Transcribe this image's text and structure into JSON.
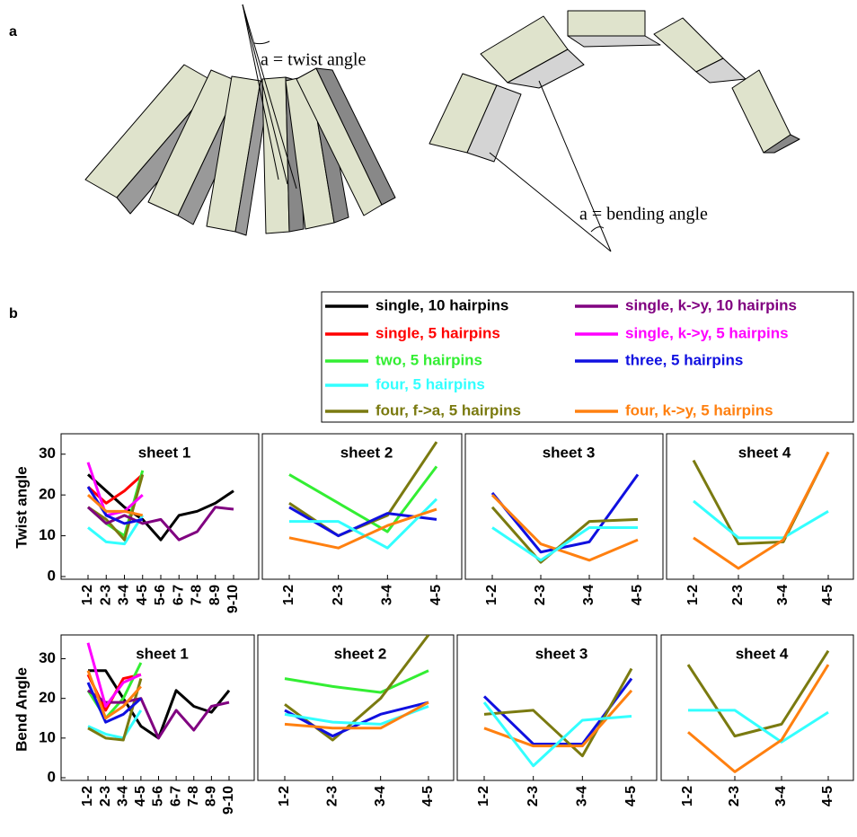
{
  "panel_a": {
    "label": "a",
    "twist_label": "a = twist angle",
    "bend_label": "a = bending angle"
  },
  "panel_b": {
    "label": "b"
  },
  "chart_data": [
    {
      "type": "line",
      "title": "sheet 1",
      "ylabel": "Twist angle",
      "categories": [
        "1-2",
        "2-3",
        "3-4",
        "4-5",
        "5-6",
        "6-7",
        "7-8",
        "8-9",
        "9-10"
      ],
      "ylim": [
        0,
        35
      ],
      "yticks": [
        0,
        10,
        20,
        30
      ],
      "series": [
        {
          "name": "single, 10 hairpins",
          "color": "#000000",
          "values": [
            25,
            21,
            17,
            14,
            9,
            15,
            16,
            18,
            21
          ]
        },
        {
          "name": "single, 5 hairpins",
          "color": "#ff0000",
          "values": [
            22,
            18,
            21,
            25,
            null,
            null,
            null,
            null,
            null
          ]
        },
        {
          "name": "two, 5 hairpins",
          "color": "#33ee33",
          "values": [
            17,
            13,
            10,
            26,
            null,
            null,
            null,
            null,
            null
          ]
        },
        {
          "name": "four, 5 hairpins",
          "color": "#33ffff",
          "values": [
            12,
            8.5,
            8,
            15,
            null,
            null,
            null,
            null,
            null
          ]
        },
        {
          "name": "four, f->a, 5 hairpins",
          "color": "#7a7a10",
          "values": [
            17,
            14,
            9,
            25,
            null,
            null,
            null,
            null,
            null
          ]
        },
        {
          "name": "single, k->y, 10 hairpins",
          "color": "#800080",
          "values": [
            17,
            13,
            15,
            13,
            14,
            9,
            11,
            17,
            16.5
          ]
        },
        {
          "name": "single, k->y, 5 hairpins",
          "color": "#ff00ff",
          "values": [
            28,
            15,
            16,
            20,
            null,
            null,
            null,
            null,
            null
          ]
        },
        {
          "name": "three, 5 hairpins",
          "color": "#1010e0",
          "values": [
            22,
            15,
            13,
            14,
            null,
            null,
            null,
            null,
            null
          ]
        },
        {
          "name": "four, k->y, 5 hairpins",
          "color": "#ff8010",
          "values": [
            20,
            16,
            16,
            15,
            null,
            null,
            null,
            null,
            null
          ]
        }
      ]
    },
    {
      "type": "line",
      "title": "sheet 2",
      "categories": [
        "1-2",
        "2-3",
        "3-4",
        "4-5"
      ],
      "ylim": [
        0,
        35
      ],
      "series": [
        {
          "name": "two, 5 hairpins",
          "color": "#33ee33",
          "values": [
            25,
            18,
            11,
            27
          ]
        },
        {
          "name": "four, f->a, 5 hairpins",
          "color": "#7a7a10",
          "values": [
            18,
            10,
            15,
            33
          ]
        },
        {
          "name": "three, 5 hairpins",
          "color": "#1010e0",
          "values": [
            17,
            10,
            15.5,
            14
          ]
        },
        {
          "name": "four, 5 hairpins",
          "color": "#33ffff",
          "values": [
            13.5,
            13.5,
            7,
            19
          ]
        },
        {
          "name": "four, k->y, 5 hairpins",
          "color": "#ff8010",
          "values": [
            9.5,
            7,
            12.5,
            16.5
          ]
        }
      ]
    },
    {
      "type": "line",
      "title": "sheet 3",
      "categories": [
        "1-2",
        "2-3",
        "3-4",
        "4-5"
      ],
      "ylim": [
        0,
        35
      ],
      "series": [
        {
          "name": "three, 5 hairpins",
          "color": "#1010e0",
          "values": [
            20.5,
            6,
            8.5,
            25
          ]
        },
        {
          "name": "four, k->y, 5 hairpins",
          "color": "#ff8010",
          "values": [
            20,
            8,
            4,
            9
          ]
        },
        {
          "name": "four, f->a, 5 hairpins",
          "color": "#7a7a10",
          "values": [
            17,
            3.5,
            13.5,
            14
          ]
        },
        {
          "name": "four, 5 hairpins",
          "color": "#33ffff",
          "values": [
            12,
            4,
            12,
            12
          ]
        }
      ]
    },
    {
      "type": "line",
      "title": "sheet 4",
      "categories": [
        "1-2",
        "2-3",
        "3-4",
        "4-5"
      ],
      "ylim": [
        0,
        35
      ],
      "series": [
        {
          "name": "four, f->a, 5 hairpins",
          "color": "#7a7a10",
          "values": [
            28.5,
            8,
            8.5,
            30.5
          ]
        },
        {
          "name": "four, 5 hairpins",
          "color": "#33ffff",
          "values": [
            18.5,
            9.5,
            9.5,
            16
          ]
        },
        {
          "name": "four, k->y, 5 hairpins",
          "color": "#ff8010",
          "values": [
            9.5,
            2,
            9,
            30.5
          ]
        }
      ]
    },
    {
      "type": "line",
      "title": "sheet 1",
      "ylabel": "Bend Angle",
      "categories": [
        "1-2",
        "2-3",
        "3-4",
        "4-5",
        "5-6",
        "6-7",
        "7-8",
        "8-9",
        "9-10"
      ],
      "ylim": [
        0,
        36
      ],
      "yticks": [
        0,
        10,
        20,
        30
      ],
      "series": [
        {
          "name": "single, 10 hairpins",
          "color": "#000000",
          "values": [
            27,
            27,
            20,
            13,
            10,
            22,
            18,
            16.5,
            22
          ]
        },
        {
          "name": "single, 5 hairpins",
          "color": "#ff0000",
          "values": [
            26,
            17,
            25,
            26,
            null,
            null,
            null,
            null,
            null
          ]
        },
        {
          "name": "two, 5 hairpins",
          "color": "#33ee33",
          "values": [
            22,
            15,
            20,
            29,
            null,
            null,
            null,
            null,
            null
          ]
        },
        {
          "name": "four, 5 hairpins",
          "color": "#33ffff",
          "values": [
            13,
            11,
            10,
            17,
            null,
            null,
            null,
            null,
            null
          ]
        },
        {
          "name": "four, f->a, 5 hairpins",
          "color": "#7a7a10",
          "values": [
            12.5,
            10,
            9.5,
            25,
            null,
            null,
            null,
            null,
            null
          ]
        },
        {
          "name": "single, k->y, 10 hairpins",
          "color": "#800080",
          "values": [
            22,
            19,
            19,
            20,
            10,
            17,
            12,
            18,
            19
          ]
        },
        {
          "name": "single, k->y, 5 hairpins",
          "color": "#ff00ff",
          "values": [
            34,
            18,
            24,
            26,
            null,
            null,
            null,
            null,
            null
          ]
        },
        {
          "name": "three, 5 hairpins",
          "color": "#1010e0",
          "values": [
            24,
            14,
            16,
            20,
            null,
            null,
            null,
            null,
            null
          ]
        },
        {
          "name": "four, k->y, 5 hairpins",
          "color": "#ff8010",
          "values": [
            27,
            15,
            18,
            23,
            null,
            null,
            null,
            null,
            null
          ]
        }
      ]
    },
    {
      "type": "line",
      "title": "sheet 2",
      "categories": [
        "1-2",
        "2-3",
        "3-4",
        "4-5"
      ],
      "ylim": [
        0,
        36
      ],
      "series": [
        {
          "name": "two, 5 hairpins",
          "color": "#33ee33",
          "values": [
            25,
            23,
            21.5,
            27
          ]
        },
        {
          "name": "four, f->a, 5 hairpins",
          "color": "#7a7a10",
          "values": [
            18.5,
            9.5,
            20,
            36
          ]
        },
        {
          "name": "three, 5 hairpins",
          "color": "#1010e0",
          "values": [
            17,
            10.5,
            16,
            19
          ]
        },
        {
          "name": "four, 5 hairpins",
          "color": "#33ffff",
          "values": [
            16,
            14,
            13.5,
            18
          ]
        },
        {
          "name": "four, k->y, 5 hairpins",
          "color": "#ff8010",
          "values": [
            13.5,
            12.5,
            12.5,
            19
          ]
        }
      ]
    },
    {
      "type": "line",
      "title": "sheet 3",
      "categories": [
        "1-2",
        "2-3",
        "3-4",
        "4-5"
      ],
      "ylim": [
        0,
        36
      ],
      "series": [
        {
          "name": "three, 5 hairpins",
          "color": "#1010e0",
          "values": [
            20.5,
            8.5,
            8.5,
            25
          ]
        },
        {
          "name": "four, f->a, 5 hairpins",
          "color": "#7a7a10",
          "values": [
            16,
            17,
            5.5,
            27.5
          ]
        },
        {
          "name": "four, k->y, 5 hairpins",
          "color": "#ff8010",
          "values": [
            12.5,
            8,
            8,
            22
          ]
        },
        {
          "name": "four, 5 hairpins",
          "color": "#33ffff",
          "values": [
            19,
            3,
            14.5,
            15.5
          ]
        }
      ]
    },
    {
      "type": "line",
      "title": "sheet 4",
      "categories": [
        "1-2",
        "2-3",
        "3-4",
        "4-5"
      ],
      "ylim": [
        0,
        36
      ],
      "series": [
        {
          "name": "four, f->a, 5 hairpins",
          "color": "#7a7a10",
          "values": [
            28.5,
            10.5,
            13.5,
            32
          ]
        },
        {
          "name": "four, 5 hairpins",
          "color": "#33ffff",
          "values": [
            17,
            17,
            9,
            16.5
          ]
        },
        {
          "name": "four, k->y, 5 hairpins",
          "color": "#ff8010",
          "values": [
            11.5,
            1.5,
            9.5,
            28.5
          ]
        }
      ]
    }
  ]
}
